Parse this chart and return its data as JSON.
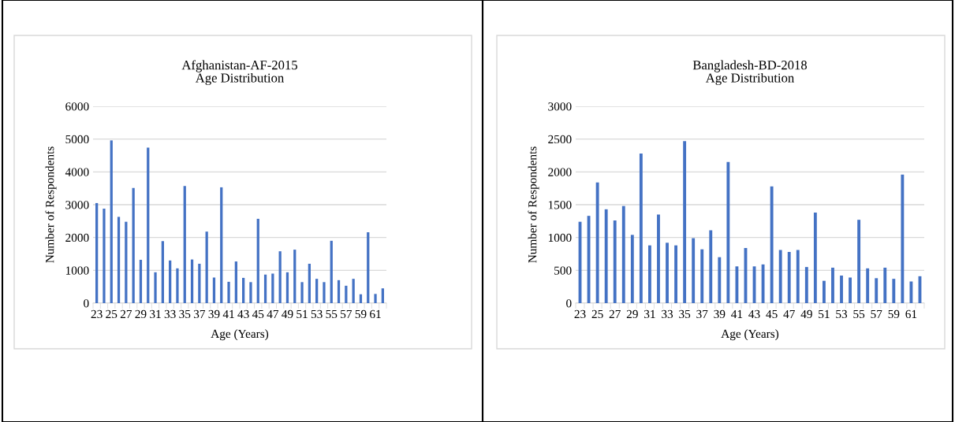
{
  "chart_data": [
    {
      "type": "bar",
      "title": "Afghanistan-AF-2015\nAge Distribution",
      "xlabel": "Age (Years)",
      "ylabel": "Number of Respondents",
      "categories": [
        "23",
        null,
        "25",
        null,
        "27",
        null,
        "29",
        null,
        "31",
        null,
        "33",
        null,
        "35",
        null,
        "37",
        null,
        "39",
        null,
        "41",
        null,
        "43",
        null,
        "45",
        null,
        "47",
        null,
        "49",
        null,
        "51",
        null,
        "53",
        null,
        "55",
        null,
        "57",
        null,
        "59",
        null,
        "61",
        null
      ],
      "values": [
        3050,
        2880,
        4960,
        2630,
        2480,
        3510,
        1320,
        4740,
        940,
        1890,
        1300,
        1060,
        3570,
        1330,
        1200,
        2180,
        780,
        3530,
        650,
        1270,
        770,
        640,
        2570,
        870,
        900,
        1580,
        940,
        1630,
        640,
        1200,
        740,
        640,
        1900,
        700,
        530,
        740,
        270,
        2160,
        280,
        450
      ],
      "color": "#4472c4",
      "ylim": [
        0,
        6000
      ],
      "yticks": [
        0,
        1000,
        2000,
        3000,
        4000,
        5000,
        6000
      ],
      "grid": "y"
    },
    {
      "type": "bar",
      "title": "Bangladesh-BD-2018\nAge Distribution",
      "xlabel": "Age (Years)",
      "ylabel": "Number of Respondents",
      "categories": [
        "23",
        null,
        "25",
        null,
        "27",
        null,
        "29",
        null,
        "31",
        null,
        "33",
        null,
        "35",
        null,
        "37",
        null,
        "39",
        null,
        "41",
        null,
        "43",
        null,
        "45",
        null,
        "47",
        null,
        "49",
        null,
        "51",
        null,
        "53",
        null,
        "55",
        null,
        "57",
        null,
        "59",
        null,
        "61",
        null
      ],
      "values": [
        1240,
        1330,
        1840,
        1430,
        1260,
        1480,
        1040,
        2280,
        880,
        1350,
        920,
        880,
        2470,
        990,
        820,
        1110,
        700,
        2150,
        560,
        840,
        560,
        590,
        1780,
        810,
        780,
        810,
        550,
        1380,
        340,
        540,
        420,
        390,
        1270,
        530,
        380,
        540,
        370,
        1960,
        330,
        410
      ],
      "color": "#4472c4",
      "ylim": [
        0,
        3000
      ],
      "yticks": [
        0,
        500,
        1000,
        1500,
        2000,
        2500,
        3000
      ],
      "grid": "y"
    }
  ]
}
